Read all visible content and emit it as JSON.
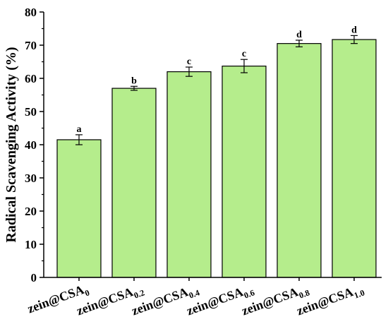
{
  "chart_data": {
    "type": "bar",
    "y_label": "Radical Scavenging Activity (%)",
    "categories": [
      {
        "text": "zein@CSA",
        "sub": "0"
      },
      {
        "text": "zein@CSA",
        "sub": "0.2"
      },
      {
        "text": "zein@CSA",
        "sub": "0.4"
      },
      {
        "text": "zein@CSA",
        "sub": "0.6"
      },
      {
        "text": "zein@CSA",
        "sub": "0.8"
      },
      {
        "text": "zein@CSA",
        "sub": "1.0"
      }
    ],
    "values": [
      41.5,
      57.0,
      62.0,
      63.7,
      70.5,
      71.7
    ],
    "errors": [
      1.5,
      0.6,
      1.4,
      2.0,
      1.0,
      1.2
    ],
    "annotations": [
      "a",
      "b",
      "c",
      "c",
      "d",
      "d"
    ],
    "color": "#b5ed8c",
    "ylim": [
      0,
      80
    ],
    "yticks": [
      0,
      10,
      20,
      30,
      40,
      50,
      60,
      70,
      80
    ]
  }
}
